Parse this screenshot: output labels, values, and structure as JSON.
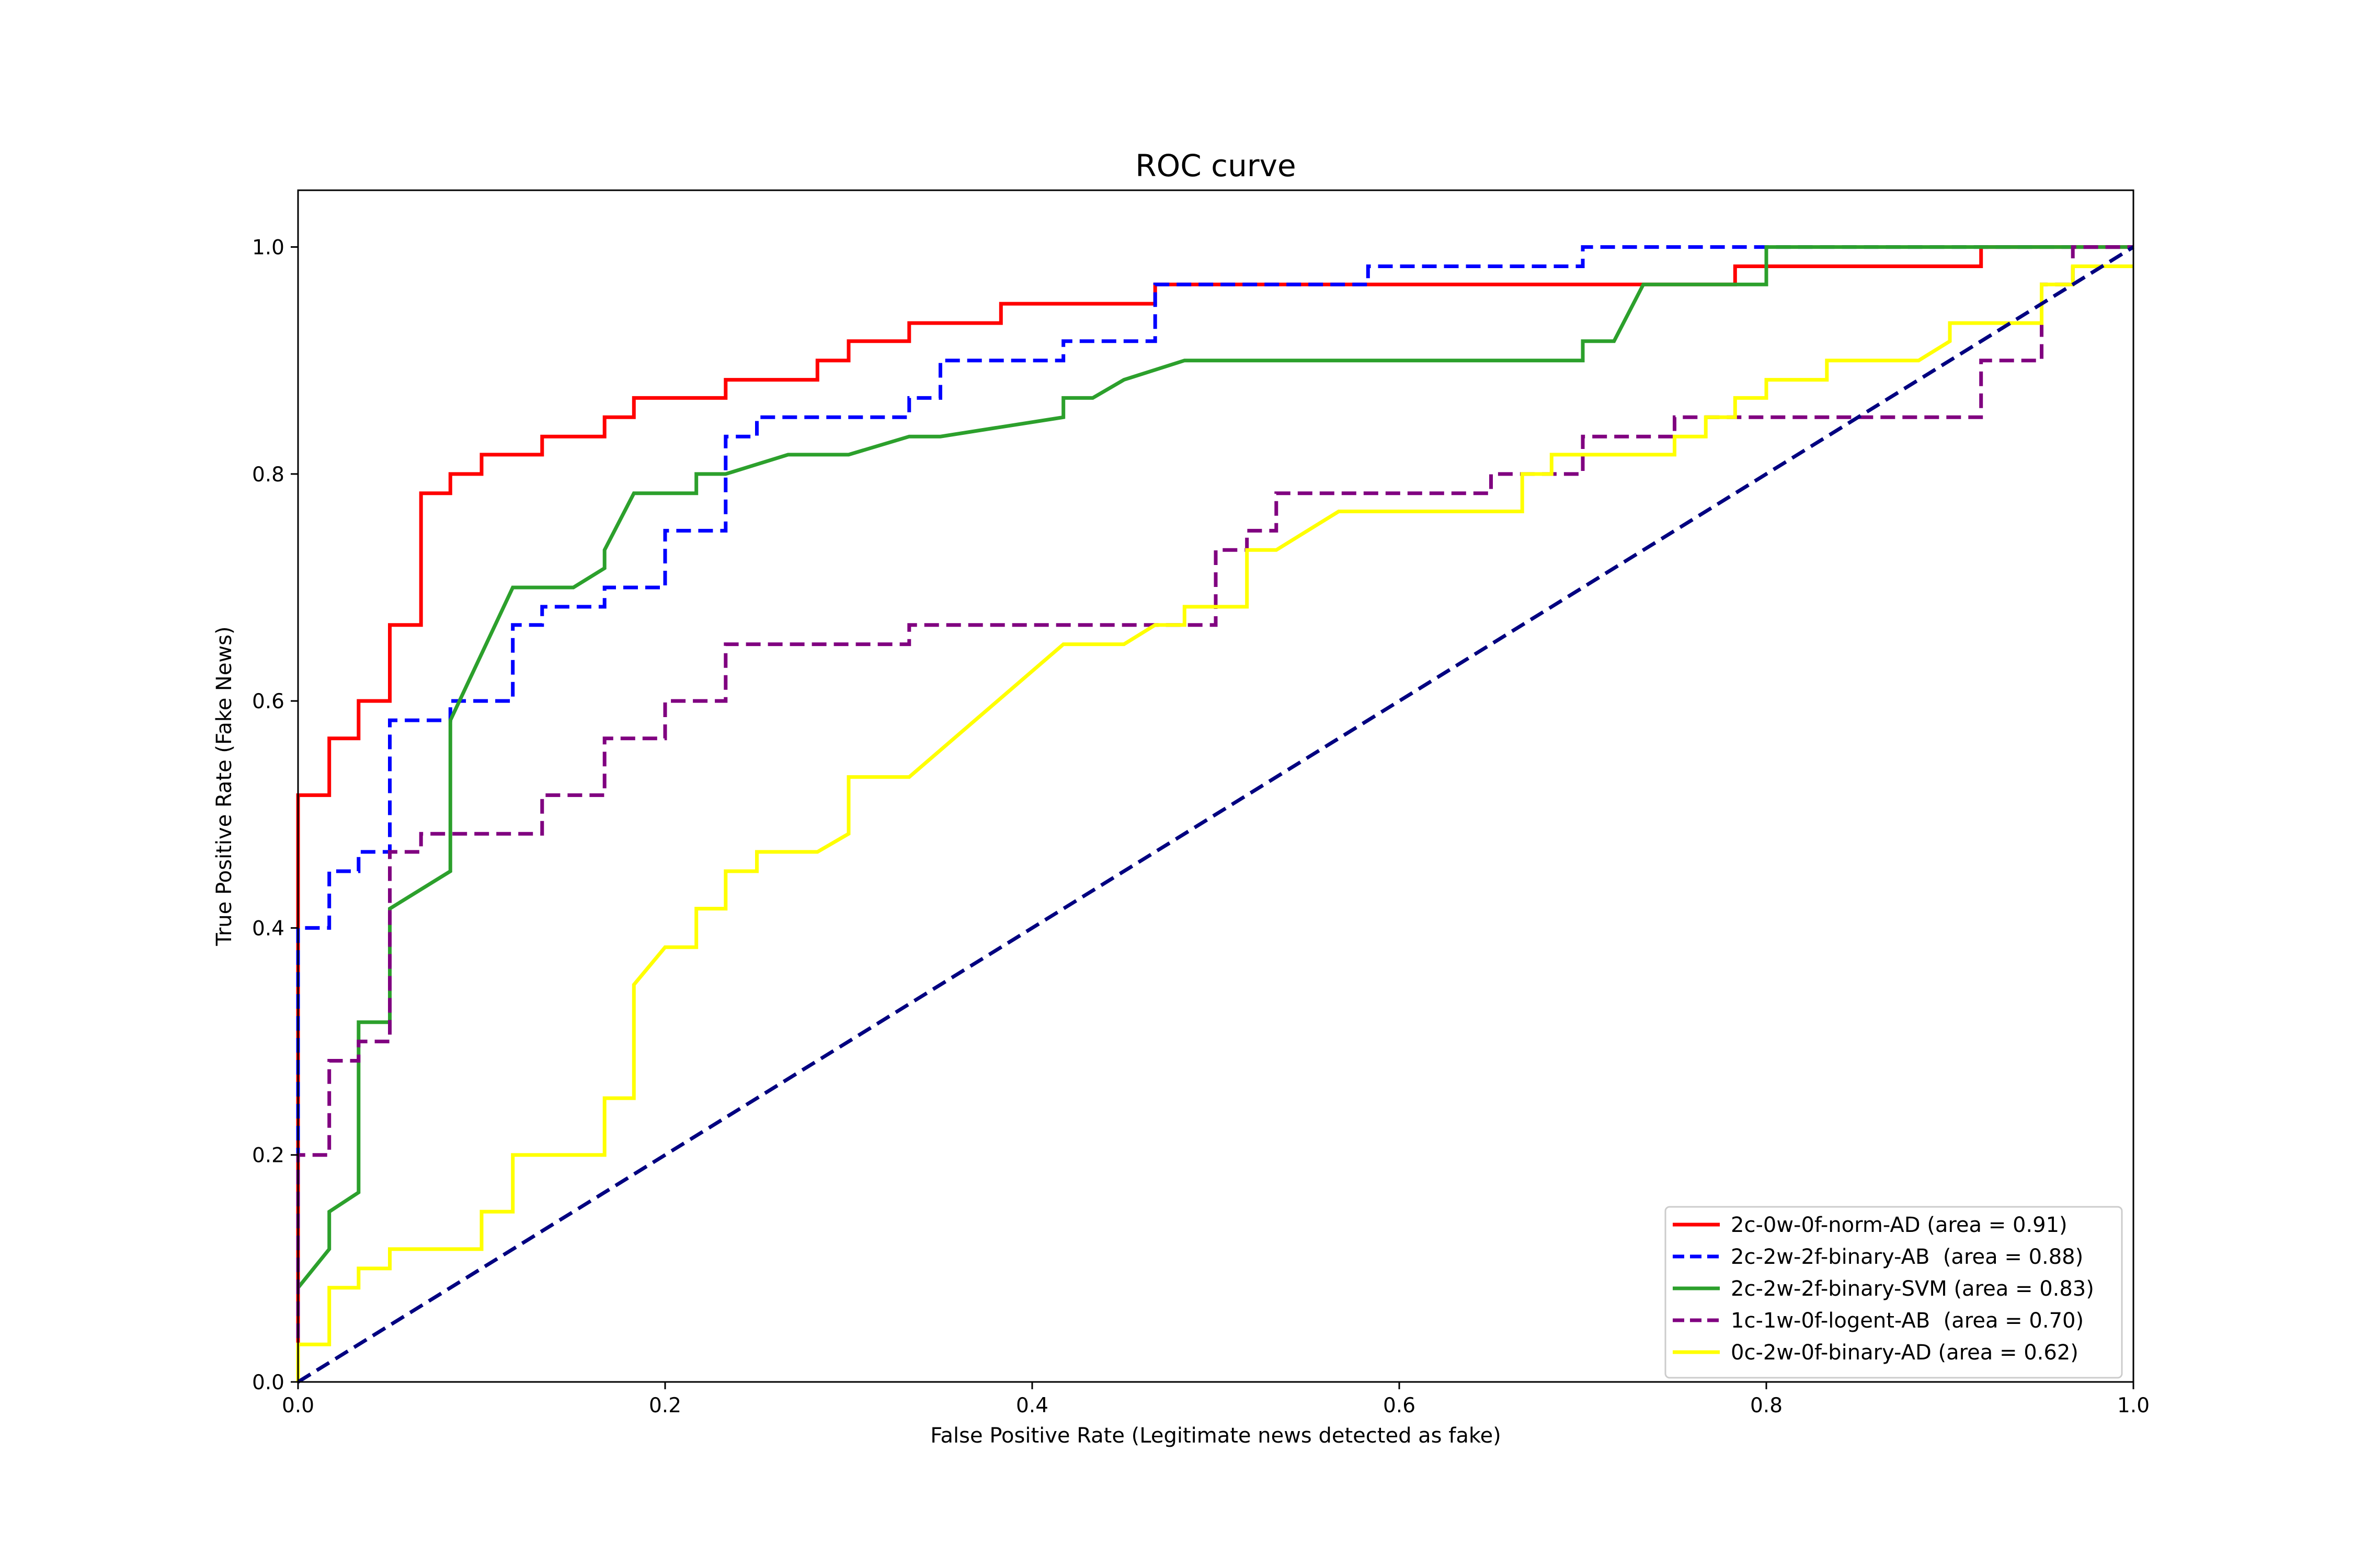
{
  "chart_data": {
    "type": "line",
    "title": "ROC curve",
    "xlabel": "False Positive Rate (Legitimate news detected as fake)",
    "ylabel": "True Positive Rate (Fake News)",
    "xlim": [
      0,
      1
    ],
    "ylim": [
      0,
      1.05
    ],
    "xticks": [
      0,
      0.2,
      0.4,
      0.6,
      0.8,
      1.0
    ],
    "xtick_labels": [
      "0.0",
      "0.2",
      "0.4",
      "0.6",
      "0.8",
      "1.0"
    ],
    "yticks": [
      0,
      0.2,
      0.4,
      0.6,
      0.8,
      1.0
    ],
    "ytick_labels": [
      "0.0",
      "0.2",
      "0.4",
      "0.6",
      "0.8",
      "1.0"
    ],
    "grid": false,
    "legend_position": "lower-right",
    "series": [
      {
        "name": "2c-0w-0f-norm-AD (area = 0.91)",
        "color": "#ff0000",
        "dash": "solid",
        "points": [
          [
            0,
            0
          ],
          [
            0,
            0.517
          ],
          [
            0.017,
            0.517
          ],
          [
            0.017,
            0.567
          ],
          [
            0.033,
            0.567
          ],
          [
            0.033,
            0.6
          ],
          [
            0.05,
            0.6
          ],
          [
            0.05,
            0.667
          ],
          [
            0.067,
            0.667
          ],
          [
            0.067,
            0.783
          ],
          [
            0.083,
            0.783
          ],
          [
            0.083,
            0.8
          ],
          [
            0.1,
            0.8
          ],
          [
            0.1,
            0.817
          ],
          [
            0.133,
            0.817
          ],
          [
            0.133,
            0.833
          ],
          [
            0.167,
            0.833
          ],
          [
            0.167,
            0.85
          ],
          [
            0.183,
            0.85
          ],
          [
            0.183,
            0.867
          ],
          [
            0.233,
            0.867
          ],
          [
            0.233,
            0.883
          ],
          [
            0.283,
            0.883
          ],
          [
            0.283,
            0.9
          ],
          [
            0.3,
            0.9
          ],
          [
            0.3,
            0.917
          ],
          [
            0.333,
            0.917
          ],
          [
            0.333,
            0.933
          ],
          [
            0.383,
            0.933
          ],
          [
            0.383,
            0.95
          ],
          [
            0.467,
            0.95
          ],
          [
            0.467,
            0.967
          ],
          [
            0.783,
            0.967
          ],
          [
            0.783,
            0.983
          ],
          [
            0.917,
            0.983
          ],
          [
            0.917,
            1.0
          ],
          [
            1.0,
            1.0
          ]
        ]
      },
      {
        "name": "2c-2w-2f-binary-AB  (area = 0.88)",
        "color": "#0000ff",
        "dash": "dashed",
        "points": [
          [
            0,
            0
          ],
          [
            0,
            0.4
          ],
          [
            0.017,
            0.4
          ],
          [
            0.017,
            0.45
          ],
          [
            0.033,
            0.45
          ],
          [
            0.033,
            0.467
          ],
          [
            0.05,
            0.467
          ],
          [
            0.05,
            0.583
          ],
          [
            0.083,
            0.583
          ],
          [
            0.083,
            0.6
          ],
          [
            0.117,
            0.6
          ],
          [
            0.117,
            0.667
          ],
          [
            0.133,
            0.667
          ],
          [
            0.133,
            0.683
          ],
          [
            0.167,
            0.683
          ],
          [
            0.167,
            0.7
          ],
          [
            0.2,
            0.7
          ],
          [
            0.2,
            0.75
          ],
          [
            0.233,
            0.75
          ],
          [
            0.233,
            0.833
          ],
          [
            0.25,
            0.833
          ],
          [
            0.25,
            0.85
          ],
          [
            0.333,
            0.85
          ],
          [
            0.333,
            0.867
          ],
          [
            0.35,
            0.867
          ],
          [
            0.35,
            0.9
          ],
          [
            0.417,
            0.9
          ],
          [
            0.417,
            0.917
          ],
          [
            0.467,
            0.917
          ],
          [
            0.467,
            0.967
          ],
          [
            0.583,
            0.967
          ],
          [
            0.583,
            0.983
          ],
          [
            0.7,
            0.983
          ],
          [
            0.7,
            1.0
          ],
          [
            1.0,
            1.0
          ]
        ]
      },
      {
        "name": "2c-2w-2f-binary-SVM (area = 0.83)",
        "color": "#2ca02c",
        "dash": "solid",
        "points": [
          [
            0,
            0.083
          ],
          [
            0.017,
            0.117
          ],
          [
            0.017,
            0.15
          ],
          [
            0.033,
            0.167
          ],
          [
            0.033,
            0.317
          ],
          [
            0.05,
            0.317
          ],
          [
            0.05,
            0.417
          ],
          [
            0.083,
            0.45
          ],
          [
            0.083,
            0.583
          ],
          [
            0.117,
            0.7
          ],
          [
            0.15,
            0.7
          ],
          [
            0.167,
            0.717
          ],
          [
            0.167,
            0.733
          ],
          [
            0.183,
            0.783
          ],
          [
            0.217,
            0.783
          ],
          [
            0.217,
            0.8
          ],
          [
            0.233,
            0.8
          ],
          [
            0.267,
            0.817
          ],
          [
            0.3,
            0.817
          ],
          [
            0.333,
            0.833
          ],
          [
            0.35,
            0.833
          ],
          [
            0.417,
            0.85
          ],
          [
            0.417,
            0.867
          ],
          [
            0.433,
            0.867
          ],
          [
            0.45,
            0.883
          ],
          [
            0.483,
            0.9
          ],
          [
            0.7,
            0.9
          ],
          [
            0.7,
            0.917
          ],
          [
            0.717,
            0.917
          ],
          [
            0.733,
            0.967
          ],
          [
            0.8,
            0.967
          ],
          [
            0.8,
            1.0
          ],
          [
            1.0,
            1.0
          ]
        ]
      },
      {
        "name": "1c-1w-0f-logent-AB  (area = 0.70)",
        "color": "#800080",
        "dash": "dashed",
        "points": [
          [
            0,
            0
          ],
          [
            0,
            0.2
          ],
          [
            0.017,
            0.2
          ],
          [
            0.017,
            0.283
          ],
          [
            0.033,
            0.283
          ],
          [
            0.033,
            0.3
          ],
          [
            0.05,
            0.3
          ],
          [
            0.05,
            0.467
          ],
          [
            0.067,
            0.467
          ],
          [
            0.067,
            0.483
          ],
          [
            0.133,
            0.483
          ],
          [
            0.133,
            0.517
          ],
          [
            0.167,
            0.517
          ],
          [
            0.167,
            0.567
          ],
          [
            0.2,
            0.567
          ],
          [
            0.2,
            0.6
          ],
          [
            0.233,
            0.6
          ],
          [
            0.233,
            0.65
          ],
          [
            0.333,
            0.65
          ],
          [
            0.333,
            0.667
          ],
          [
            0.5,
            0.667
          ],
          [
            0.5,
            0.733
          ],
          [
            0.517,
            0.733
          ],
          [
            0.517,
            0.75
          ],
          [
            0.533,
            0.75
          ],
          [
            0.533,
            0.783
          ],
          [
            0.65,
            0.783
          ],
          [
            0.65,
            0.8
          ],
          [
            0.7,
            0.8
          ],
          [
            0.7,
            0.833
          ],
          [
            0.75,
            0.833
          ],
          [
            0.75,
            0.85
          ],
          [
            0.917,
            0.85
          ],
          [
            0.917,
            0.9
          ],
          [
            0.95,
            0.9
          ],
          [
            0.95,
            0.967
          ],
          [
            0.967,
            0.967
          ],
          [
            0.967,
            1.0
          ],
          [
            1.0,
            1.0
          ]
        ]
      },
      {
        "name": "0c-2w-0f-binary-AD (area = 0.62)",
        "color": "#ffff00",
        "dash": "solid",
        "points": [
          [
            0,
            0
          ],
          [
            0,
            0.033
          ],
          [
            0.017,
            0.033
          ],
          [
            0.017,
            0.083
          ],
          [
            0.033,
            0.083
          ],
          [
            0.033,
            0.1
          ],
          [
            0.05,
            0.1
          ],
          [
            0.05,
            0.117
          ],
          [
            0.1,
            0.117
          ],
          [
            0.1,
            0.15
          ],
          [
            0.117,
            0.15
          ],
          [
            0.117,
            0.2
          ],
          [
            0.167,
            0.2
          ],
          [
            0.167,
            0.25
          ],
          [
            0.183,
            0.25
          ],
          [
            0.183,
            0.35
          ],
          [
            0.2,
            0.383
          ],
          [
            0.217,
            0.383
          ],
          [
            0.217,
            0.417
          ],
          [
            0.233,
            0.417
          ],
          [
            0.233,
            0.45
          ],
          [
            0.25,
            0.45
          ],
          [
            0.25,
            0.467
          ],
          [
            0.283,
            0.467
          ],
          [
            0.3,
            0.483
          ],
          [
            0.3,
            0.533
          ],
          [
            0.333,
            0.533
          ],
          [
            0.417,
            0.65
          ],
          [
            0.45,
            0.65
          ],
          [
            0.467,
            0.667
          ],
          [
            0.483,
            0.667
          ],
          [
            0.483,
            0.683
          ],
          [
            0.517,
            0.683
          ],
          [
            0.517,
            0.733
          ],
          [
            0.533,
            0.733
          ],
          [
            0.567,
            0.767
          ],
          [
            0.667,
            0.767
          ],
          [
            0.667,
            0.8
          ],
          [
            0.683,
            0.8
          ],
          [
            0.683,
            0.817
          ],
          [
            0.75,
            0.817
          ],
          [
            0.75,
            0.833
          ],
          [
            0.767,
            0.833
          ],
          [
            0.767,
            0.85
          ],
          [
            0.783,
            0.85
          ],
          [
            0.783,
            0.867
          ],
          [
            0.8,
            0.867
          ],
          [
            0.8,
            0.883
          ],
          [
            0.833,
            0.883
          ],
          [
            0.833,
            0.9
          ],
          [
            0.883,
            0.9
          ],
          [
            0.9,
            0.917
          ],
          [
            0.9,
            0.933
          ],
          [
            0.95,
            0.933
          ],
          [
            0.95,
            0.967
          ],
          [
            0.967,
            0.967
          ],
          [
            0.967,
            0.983
          ],
          [
            1.0,
            0.983
          ]
        ]
      }
    ],
    "reference_line": {
      "color": "#000080",
      "dash": "dashed",
      "points": [
        [
          0,
          0
        ],
        [
          1,
          1
        ]
      ]
    }
  }
}
